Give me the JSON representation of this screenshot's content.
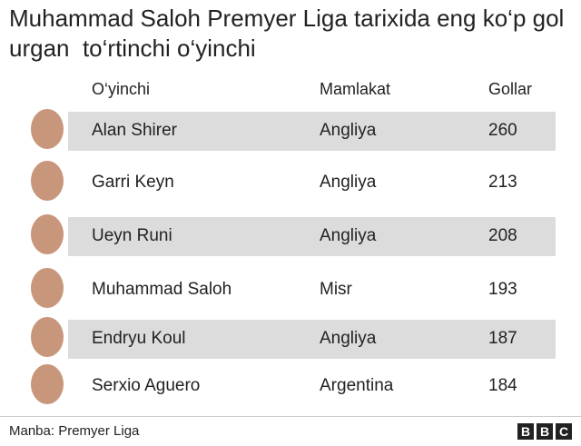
{
  "header": {
    "title": "Muhammad Saloh Premyer Liga tarixida eng ko‘p gol urgan  to‘rtinchi o‘yinchi"
  },
  "table": {
    "columns": [
      "O‘yinchi",
      "Mamlakat",
      "Gollar"
    ],
    "rows": [
      [
        "Alan Shirer",
        "Angliya",
        "260"
      ],
      [
        "Garri Keyn",
        "Angliya",
        "213"
      ],
      [
        "Ueyn Runi",
        "Angliya",
        "208"
      ],
      [
        "Muhammad Saloh",
        "Misr",
        "193"
      ],
      [
        "Endryu Koul",
        "Angliya",
        "187"
      ],
      [
        "Serxio Aguero",
        "Argentina",
        "184"
      ]
    ]
  },
  "footer": {
    "source": "Manba: Premyer Liga",
    "logo": [
      "B",
      "B",
      "C"
    ]
  }
}
